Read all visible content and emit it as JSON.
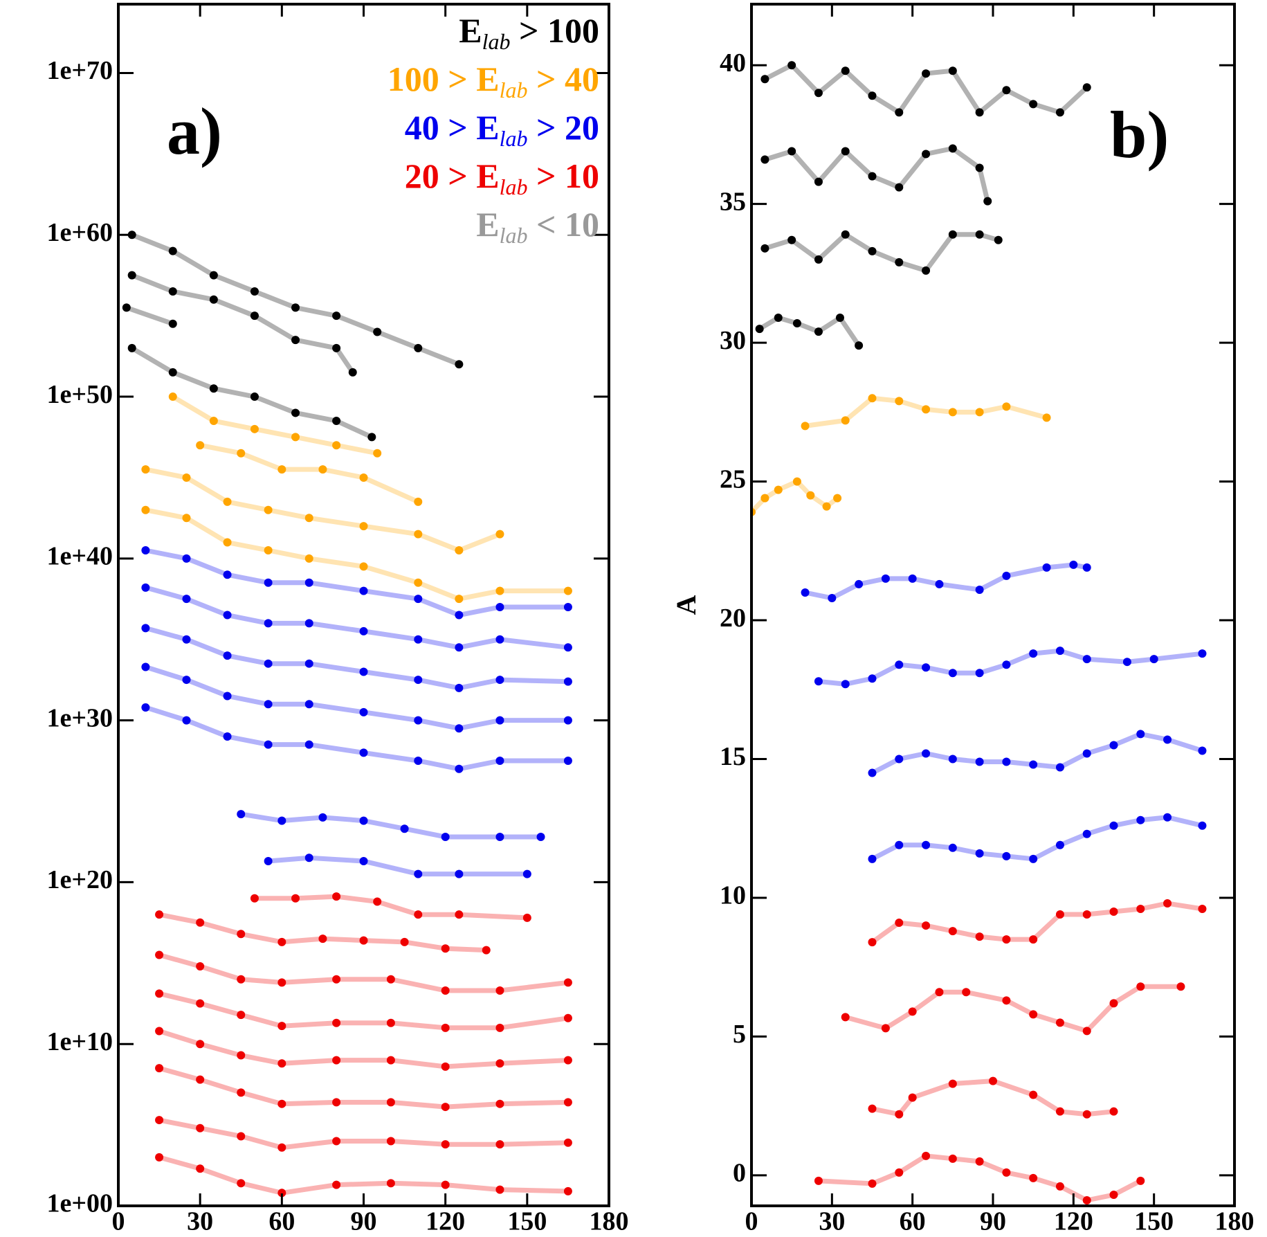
{
  "chart_data": [
    {
      "type": "line",
      "annotation": "a)",
      "log_y": true,
      "xlim": [
        0,
        180
      ],
      "xticks": [
        0,
        30,
        60,
        90,
        120,
        150,
        180
      ],
      "ylim": [
        1,
        1.8e+74
      ],
      "yticks": [
        {
          "value": 1,
          "label": "1e+00"
        },
        {
          "value": 10000000000.0,
          "label": "1e+10"
        },
        {
          "value": 1e+20,
          "label": "1e+20"
        },
        {
          "value": 1e+30,
          "label": "1e+30"
        },
        {
          "value": 1e+40,
          "label": "1e+40"
        },
        {
          "value": 1e+50,
          "label": "1e+50"
        },
        {
          "value": 1e+60,
          "label": "1e+60"
        },
        {
          "value": 1e+70,
          "label": "1e+70"
        }
      ],
      "legend": [
        {
          "main": "E",
          "sub": "lab",
          "after": " > 100",
          "color": "#000000"
        },
        {
          "before": "100 > ",
          "main": "E",
          "sub": "lab",
          "after": " > 40",
          "color": "#ffa500"
        },
        {
          "before": "40 > ",
          "main": "E",
          "sub": "lab",
          "after": " > 20",
          "color": "#0000ee"
        },
        {
          "before": "20 > ",
          "main": "E",
          "sub": "lab",
          "after": " > 10",
          "color": "#ee0000"
        },
        {
          "main": "E",
          "sub": "lab",
          "after": " < 10",
          "color": "#999999"
        }
      ],
      "series": [
        {
          "color": "#000000",
          "x": [
            5,
            20,
            35,
            50,
            65,
            80,
            95,
            110,
            125
          ],
          "values": [
            1e+60,
            1e+59,
            3.2e+57,
            3.2e+56,
            3.2e+55,
            1e+55,
            1e+54,
            1e+53,
            1e+52
          ]
        },
        {
          "color": "#000000",
          "x": [
            5,
            20,
            35,
            50,
            65,
            80,
            86
          ],
          "values": [
            3.2e+57,
            3.2e+56,
            1e+56,
            1e+55,
            3.2e+53,
            1e+53,
            3.2e+51
          ]
        },
        {
          "color": "#000000",
          "x": [
            3,
            20
          ],
          "values": [
            3.2e+55,
            3.2e+54
          ]
        },
        {
          "color": "#000000",
          "x": [
            5,
            20,
            35,
            50,
            65,
            80,
            93
          ],
          "values": [
            1e+53,
            3.2e+51,
            3.2e+50,
            1e+50,
            1e+49,
            3.2e+48,
            3.2e+47
          ]
        },
        {
          "color": "#ffa500",
          "x": [
            20,
            35,
            50,
            65,
            80,
            95
          ],
          "values": [
            1e+50,
            3.2e+48,
            1e+48,
            3.2e+47,
            1e+47,
            3.2e+46
          ]
        },
        {
          "color": "#ffa500",
          "x": [
            30,
            45,
            60,
            75,
            90,
            110
          ],
          "values": [
            1e+47,
            3.2e+46,
            3.2e+45,
            3.2e+45,
            1e+45,
            3.2e+43
          ]
        },
        {
          "color": "#ffa500",
          "x": [
            10,
            25,
            40,
            55,
            70,
            90,
            110,
            125,
            140
          ],
          "values": [
            3.2e+45,
            1e+45,
            3.2e+43,
            1e+43,
            3.2e+42,
            1e+42,
            3.2e+41,
            3.2e+40,
            3.2e+41
          ]
        },
        {
          "color": "#ffa500",
          "x": [
            10,
            25,
            40,
            55,
            70,
            90,
            110,
            125,
            140,
            165
          ],
          "values": [
            1e+43,
            3.2e+42,
            1e+41,
            3.2e+40,
            1e+40,
            3.2e+39,
            3.2e+38,
            3.2e+37,
            1e+38,
            1e+38
          ]
        },
        {
          "color": "#0000ee",
          "x": [
            10,
            25,
            40,
            55,
            70,
            90,
            110,
            125,
            140,
            165
          ],
          "values": [
            3.2e+40,
            1e+40,
            1e+39,
            3.2e+38,
            3.2e+38,
            1e+38,
            3.2e+37,
            3.2e+36,
            1e+37,
            1e+37
          ]
        },
        {
          "color": "#0000ee",
          "x": [
            10,
            25,
            40,
            55,
            70,
            90,
            110,
            125,
            140,
            165
          ],
          "values": [
            1.6e+38,
            3.2e+37,
            3.2e+36,
            1e+36,
            1e+36,
            3.2e+35,
            1e+35,
            3.2e+34,
            1e+35,
            3.2e+34
          ]
        },
        {
          "color": "#0000ee",
          "x": [
            10,
            25,
            40,
            55,
            70,
            90,
            110,
            125,
            140,
            165
          ],
          "values": [
            5e+35,
            1e+35,
            1e+34,
            3.2e+33,
            3.2e+33,
            1e+33,
            3.2e+32,
            1e+32,
            3.2e+32,
            2.5e+32
          ]
        },
        {
          "color": "#0000ee",
          "x": [
            10,
            25,
            40,
            55,
            70,
            90,
            110,
            125,
            140,
            165
          ],
          "values": [
            2e+33,
            3.2e+32,
            3.2e+31,
            1e+31,
            1e+31,
            3.2e+30,
            1e+30,
            3.2e+29,
            1e+30,
            1e+30
          ]
        },
        {
          "color": "#0000ee",
          "x": [
            10,
            25,
            40,
            55,
            70,
            90,
            110,
            125,
            140,
            165
          ],
          "values": [
            6.3e+30,
            1e+30,
            1e+29,
            3.2e+28,
            3.2e+28,
            1e+28,
            3.2e+27,
            1e+27,
            3.2e+27,
            3.2e+27
          ]
        },
        {
          "color": "#0000ee",
          "x": [
            45,
            60,
            75,
            90,
            105,
            120,
            140,
            155
          ],
          "values": [
            1.6e+24,
            6.3e+23,
            1e+24,
            6.3e+23,
            2e+23,
            6.3e+22,
            6.3e+22,
            6.3e+22
          ]
        },
        {
          "color": "#0000ee",
          "x": [
            55,
            70,
            90,
            110,
            125,
            150
          ],
          "values": [
            2e+21,
            3.2e+21,
            2e+21,
            3.2e+20,
            3.2e+20,
            3.2e+20
          ]
        },
        {
          "color": "#ee0000",
          "x": [
            50,
            65,
            80,
            95,
            110,
            125,
            150
          ],
          "values": [
            1e+19,
            1e+19,
            1.3e+19,
            6.3e+18,
            1e+18,
            1e+18,
            6.3e+17
          ]
        },
        {
          "color": "#ee0000",
          "x": [
            15,
            30,
            45,
            60,
            75,
            90,
            105,
            120,
            135
          ],
          "values": [
            1e+18,
            3.2e+17,
            6.3e+16,
            2e+16,
            3.2e+16,
            2.5e+16,
            2e+16,
            8000000000000000.0,
            6300000000000000.0
          ]
        },
        {
          "color": "#ee0000",
          "x": [
            15,
            30,
            45,
            60,
            80,
            100,
            120,
            140,
            165
          ],
          "values": [
            3200000000000000.0,
            630000000000000.0,
            100000000000000.0,
            63000000000000.0,
            100000000000000.0,
            100000000000000.0,
            20000000000000.0,
            20000000000000.0,
            63000000000000.0
          ]
        },
        {
          "color": "#ee0000",
          "x": [
            15,
            30,
            45,
            60,
            80,
            100,
            120,
            140,
            165
          ],
          "values": [
            13000000000000.0,
            3200000000000.0,
            630000000000.0,
            130000000000.0,
            200000000000.0,
            200000000000.0,
            100000000000.0,
            100000000000.0,
            400000000000.0
          ]
        },
        {
          "color": "#ee0000",
          "x": [
            15,
            30,
            45,
            60,
            80,
            100,
            120,
            140,
            165
          ],
          "values": [
            63000000000.0,
            10000000000.0,
            2000000000.0,
            630000000.0,
            1000000000.0,
            1000000000.0,
            400000000.0,
            630000000.0,
            1000000000.0
          ]
        },
        {
          "color": "#ee0000",
          "x": [
            15,
            30,
            45,
            60,
            80,
            100,
            120,
            140,
            165
          ],
          "values": [
            320000000.0,
            63000000.0,
            10000000.0,
            2000000.0,
            2500000.0,
            2500000.0,
            1300000.0,
            2000000.0,
            2500000.0
          ]
        },
        {
          "color": "#ee0000",
          "x": [
            15,
            30,
            45,
            60,
            80,
            100,
            120,
            140,
            165
          ],
          "values": [
            200000.0,
            63000.0,
            20000.0,
            4000,
            10000,
            10000,
            6300,
            6300,
            8000
          ]
        },
        {
          "color": "#ee0000",
          "x": [
            15,
            30,
            45,
            60,
            80,
            100,
            120,
            140,
            165
          ],
          "values": [
            1000,
            200,
            25,
            6.3,
            20,
            25,
            20,
            10,
            8
          ]
        }
      ]
    },
    {
      "type": "line",
      "annotation": "b)",
      "y_label": "A",
      "xlim": [
        0,
        180
      ],
      "xticks": [
        0,
        30,
        60,
        90,
        120,
        150,
        180
      ],
      "ylim": [
        -1.1,
        42.2
      ],
      "yticks": [
        0,
        5,
        10,
        15,
        20,
        25,
        30,
        35,
        40
      ],
      "series": [
        {
          "color": "#000000",
          "x": [
            5,
            15,
            25,
            35,
            45,
            55,
            65,
            75,
            85,
            95,
            105,
            115,
            125
          ],
          "values": [
            39.5,
            40,
            39,
            39.8,
            38.9,
            38.3,
            39.7,
            39.8,
            38.3,
            39.1,
            38.6,
            38.3,
            39.2
          ]
        },
        {
          "color": "#000000",
          "x": [
            5,
            15,
            25,
            35,
            45,
            55,
            65,
            75,
            85,
            88
          ],
          "values": [
            36.6,
            36.9,
            35.8,
            36.9,
            36,
            35.6,
            36.8,
            37,
            36.3,
            35.1
          ]
        },
        {
          "color": "#000000",
          "x": [
            5,
            15,
            25,
            35,
            45,
            55,
            65,
            75,
            85,
            92
          ],
          "values": [
            33.4,
            33.7,
            33,
            33.9,
            33.3,
            32.9,
            32.6,
            33.9,
            33.9,
            33.7
          ]
        },
        {
          "color": "#000000",
          "x": [
            3,
            10,
            17,
            25,
            33,
            40
          ],
          "values": [
            30.5,
            30.9,
            30.7,
            30.4,
            30.9,
            29.9
          ]
        },
        {
          "color": "#ffa500",
          "x": [
            20,
            35,
            45,
            55,
            65,
            75,
            85,
            95,
            110
          ],
          "values": [
            27,
            27.2,
            28,
            27.9,
            27.6,
            27.5,
            27.5,
            27.7,
            27.3
          ]
        },
        {
          "color": "#ffa500",
          "x": [
            0,
            5,
            10,
            17,
            22,
            28,
            32
          ],
          "values": [
            23.9,
            24.4,
            24.7,
            25,
            24.5,
            24.1,
            24.4
          ]
        },
        {
          "color": "#0000ee",
          "x": [
            20,
            30,
            40,
            50,
            60,
            70,
            85,
            95,
            110,
            120,
            125
          ],
          "values": [
            21,
            20.8,
            21.3,
            21.5,
            21.5,
            21.3,
            21.1,
            21.6,
            21.9,
            22,
            21.9
          ]
        },
        {
          "color": "#0000ee",
          "x": [
            25,
            35,
            45,
            55,
            65,
            75,
            85,
            95,
            105,
            115,
            125,
            140,
            150,
            168
          ],
          "values": [
            17.8,
            17.7,
            17.9,
            18.4,
            18.3,
            18.1,
            18.1,
            18.4,
            18.8,
            18.9,
            18.6,
            18.5,
            18.6,
            18.8
          ]
        },
        {
          "color": "#0000ee",
          "x": [
            45,
            55,
            65,
            75,
            85,
            95,
            105,
            115,
            125,
            135,
            145,
            155,
            168
          ],
          "values": [
            14.5,
            15,
            15.2,
            15,
            14.9,
            14.9,
            14.8,
            14.7,
            15.2,
            15.5,
            15.9,
            15.7,
            15.3
          ]
        },
        {
          "color": "#0000ee",
          "x": [
            45,
            55,
            65,
            75,
            85,
            95,
            105,
            115,
            125,
            135,
            145,
            155,
            168
          ],
          "values": [
            11.4,
            11.9,
            11.9,
            11.8,
            11.6,
            11.5,
            11.4,
            11.9,
            12.3,
            12.6,
            12.8,
            12.9,
            12.6
          ]
        },
        {
          "color": "#ee0000",
          "x": [
            45,
            55,
            65,
            75,
            85,
            95,
            105,
            115,
            125,
            135,
            145,
            155,
            168
          ],
          "values": [
            8.4,
            9.1,
            9,
            8.8,
            8.6,
            8.5,
            8.5,
            9.4,
            9.4,
            9.5,
            9.6,
            9.8,
            9.6
          ]
        },
        {
          "color": "#ee0000",
          "x": [
            35,
            50,
            60,
            70,
            80,
            95,
            105,
            115,
            125,
            135,
            145,
            160
          ],
          "values": [
            5.7,
            5.3,
            5.9,
            6.6,
            6.6,
            6.3,
            5.8,
            5.5,
            5.2,
            6.2,
            6.8,
            6.8
          ]
        },
        {
          "color": "#ee0000",
          "x": [
            45,
            55,
            60,
            75,
            90,
            105,
            115,
            125,
            135
          ],
          "values": [
            2.4,
            2.2,
            2.8,
            3.3,
            3.4,
            2.9,
            2.3,
            2.2,
            2.3
          ]
        },
        {
          "color": "#ee0000",
          "x": [
            25,
            45,
            55,
            65,
            75,
            85,
            95,
            105,
            115,
            125,
            135,
            145
          ],
          "values": [
            -0.2,
            -0.3,
            0.1,
            0.7,
            0.6,
            0.5,
            0.1,
            -0.1,
            -0.4,
            -0.9,
            -0.7,
            -0.2
          ]
        }
      ]
    }
  ]
}
